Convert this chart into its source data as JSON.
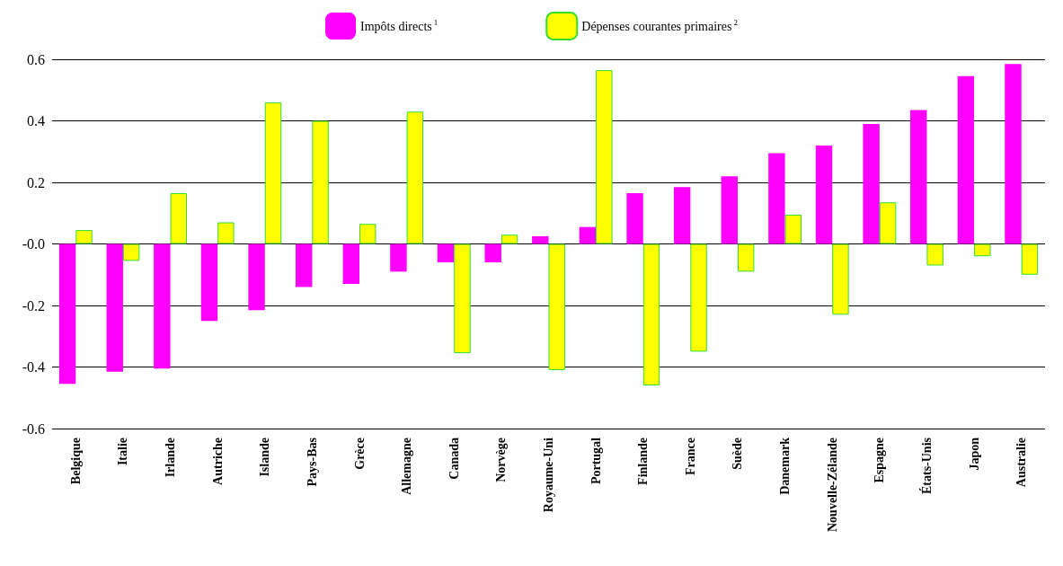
{
  "chart_data": {
    "type": "bar",
    "categories": [
      "Belgique",
      "Italie",
      "Irlande",
      "Autriche",
      "Islande",
      "Pays-Bas",
      "Grèce",
      "Allemagne",
      "Canada",
      "Norvège",
      "Royaume-Uni",
      "Portugal",
      "Finlande",
      "France",
      "Suède",
      "Danemark",
      "Nouvelle-Zélande",
      "Espagne",
      "États-Unis",
      "Japon",
      "Australie"
    ],
    "series": [
      {
        "name": "Impôts directs$^{1}$",
        "color": "#ff00ff",
        "values": [
          -0.455,
          -0.415,
          -0.405,
          -0.25,
          -0.215,
          -0.14,
          -0.13,
          -0.09,
          -0.06,
          -0.06,
          0.025,
          0.055,
          0.165,
          0.185,
          0.22,
          0.295,
          0.32,
          0.39,
          0.435,
          0.545,
          0.585
        ]
      },
      {
        "name": "Dépenses courantes primaires$^{2}$",
        "color": "#ffff00",
        "values": [
          0.045,
          -0.055,
          0.165,
          0.07,
          0.46,
          0.4,
          0.065,
          0.43,
          -0.355,
          0.03,
          -0.41,
          0.565,
          -0.46,
          -0.35,
          -0.09,
          0.095,
          -0.23,
          0.135,
          -0.07,
          -0.04,
          -0.1
        ]
      }
    ],
    "ylim": [
      -0.6,
      0.6
    ],
    "yticks": [
      {
        "value": -0.6,
        "label": "-0.6"
      },
      {
        "value": -0.4,
        "label": "-0.4"
      },
      {
        "value": -0.2,
        "label": "-0.2"
      },
      {
        "value": 0,
        "label": "-0.0"
      },
      {
        "value": 0.2,
        "label": "0.2"
      },
      {
        "value": 0.4,
        "label": "0.4"
      },
      {
        "value": 0.6,
        "label": "0.6"
      }
    ],
    "grid": "y",
    "legend": "top"
  }
}
